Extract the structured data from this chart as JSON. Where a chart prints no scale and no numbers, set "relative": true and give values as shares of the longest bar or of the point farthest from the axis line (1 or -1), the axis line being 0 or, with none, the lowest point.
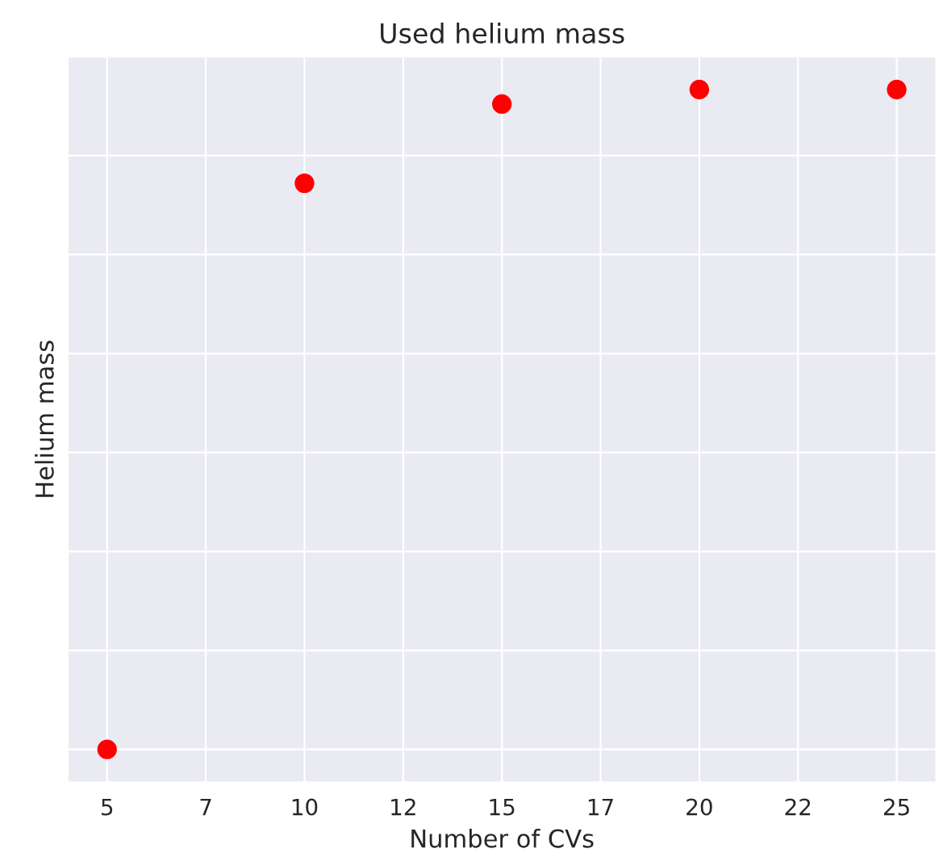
{
  "chart_data": {
    "type": "scatter",
    "title": "Used helium mass",
    "xlabel": "Number of CVs",
    "ylabel": "Helium mass",
    "x": [
      5,
      10,
      15,
      20,
      25
    ],
    "series": [
      {
        "color": "#ff0000",
        "values": [
          0,
          0.858,
          0.978,
          1,
          1
        ]
      }
    ],
    "relative": true,
    "marker": "circle",
    "xlim": [
      4,
      26
    ],
    "xticks": [
      5,
      {
        "value": 7.5,
        "label": "7"
      },
      10,
      {
        "value": 12.5,
        "label": "12"
      },
      15,
      {
        "value": 17.5,
        "label": "17"
      },
      20,
      {
        "value": 22.5,
        "label": "22"
      },
      25
    ],
    "tick_labels": "x",
    "grid": true
  }
}
